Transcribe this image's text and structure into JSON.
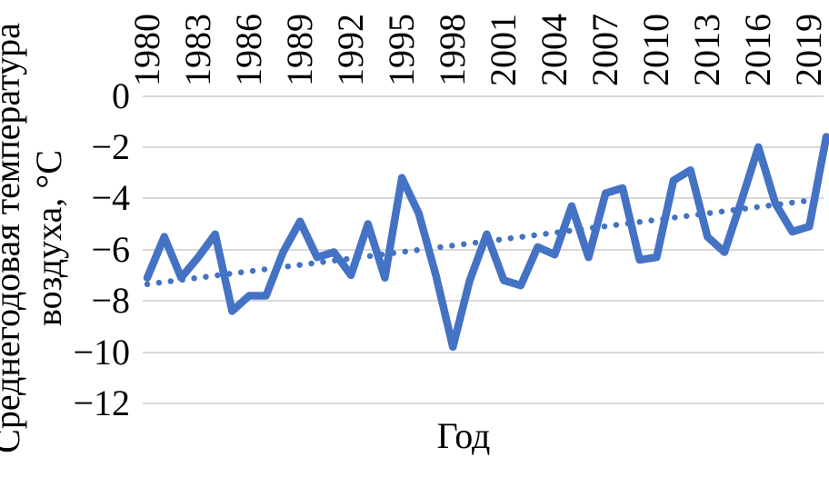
{
  "chart": {
    "y_axis_title_line1": "Среднегодовая температура",
    "y_axis_title_line2": "воздуха, °С",
    "x_axis_title": "Год"
  },
  "chart_data": {
    "type": "line",
    "title": "",
    "xlabel": "Год",
    "ylabel": "Среднегодовая температура воздуха, °С",
    "legend": "none",
    "grid": true,
    "ylim": [
      -12,
      0
    ],
    "x_range": [
      1980,
      2020
    ],
    "x_tick_labels": [
      "1980",
      "1983",
      "1986",
      "1989",
      "1992",
      "1995",
      "1998",
      "2001",
      "2004",
      "2007",
      "2010",
      "2013",
      "2016",
      "2019"
    ],
    "y_tick_labels": [
      "0",
      "−2",
      "−4",
      "−6",
      "−8",
      "−10",
      "−12"
    ],
    "y_tick_values": [
      0,
      -2,
      -4,
      -6,
      -8,
      -10,
      -12
    ],
    "line_color": "#4472C4",
    "grid_color": "#D9D9D9",
    "years": [
      1980,
      1981,
      1982,
      1983,
      1984,
      1985,
      1986,
      1987,
      1988,
      1989,
      1990,
      1991,
      1992,
      1993,
      1994,
      1995,
      1996,
      1997,
      1998,
      1999,
      2000,
      2001,
      2002,
      2003,
      2004,
      2005,
      2006,
      2007,
      2008,
      2009,
      2010,
      2011,
      2012,
      2013,
      2014,
      2015,
      2016,
      2017,
      2018,
      2019,
      2020
    ],
    "values": [
      -7.1,
      -5.5,
      -7.1,
      -6.3,
      -5.4,
      -8.4,
      -7.8,
      -7.8,
      -6.1,
      -4.9,
      -6.3,
      -6.1,
      -7.0,
      -5.0,
      -7.1,
      -3.2,
      -4.6,
      -7.0,
      -9.8,
      -7.2,
      -5.4,
      -7.2,
      -7.4,
      -5.9,
      -6.2,
      -4.3,
      -6.3,
      -3.8,
      -3.6,
      -6.4,
      -6.3,
      -3.3,
      -2.9,
      -5.5,
      -6.1,
      -4.1,
      -2.0,
      -4.2,
      -5.3,
      -5.1,
      -1.6
    ],
    "trend": {
      "type": "linear",
      "style": "dotted",
      "start_value": -7.35,
      "end_value": -4.0
    }
  }
}
